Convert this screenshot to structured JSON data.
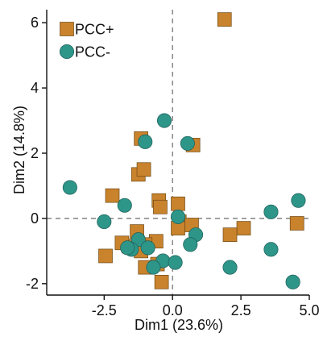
{
  "chart_data": {
    "type": "scatter",
    "xlabel": "Dim1 (23.6%)",
    "ylabel": "Dim2 (14.8%)",
    "xlim": [
      -4.6,
      5.0
    ],
    "ylim": [
      -2.35,
      6.4
    ],
    "x_ticks": [
      -2.5,
      0.0,
      2.5,
      5.0
    ],
    "x_tick_labels": [
      "-2.5",
      "0.0",
      "2.5",
      "5.0"
    ],
    "y_ticks": [
      -2,
      0,
      2,
      4,
      6
    ],
    "y_tick_labels": [
      "-2",
      "0",
      "2",
      "4",
      "6"
    ],
    "grid": false,
    "reference_lines": [
      {
        "axis": "x",
        "value": 0
      },
      {
        "axis": "y",
        "value": 0
      }
    ],
    "legend_placement": "top-left",
    "series": [
      {
        "name": "PCC+",
        "marker": "square",
        "color": "#C9832C",
        "points": [
          {
            "x": 1.9,
            "y": 6.1
          },
          {
            "x": -1.15,
            "y": 2.45
          },
          {
            "x": 0.75,
            "y": 2.25
          },
          {
            "x": -1.25,
            "y": 1.35
          },
          {
            "x": -1.05,
            "y": 1.5
          },
          {
            "x": -2.2,
            "y": 0.7
          },
          {
            "x": -0.5,
            "y": 0.55
          },
          {
            "x": -0.45,
            "y": 0.35
          },
          {
            "x": 0.2,
            "y": 0.45
          },
          {
            "x": 0.25,
            "y": -0.1
          },
          {
            "x": 0.7,
            "y": -0.2
          },
          {
            "x": 0.2,
            "y": -0.3
          },
          {
            "x": 2.6,
            "y": -0.3
          },
          {
            "x": 2.1,
            "y": -0.5
          },
          {
            "x": 4.55,
            "y": -0.15
          },
          {
            "x": -1.3,
            "y": -0.4
          },
          {
            "x": -1.6,
            "y": -0.85
          },
          {
            "x": -1.85,
            "y": -0.75
          },
          {
            "x": -0.6,
            "y": -0.7
          },
          {
            "x": -1.0,
            "y": -0.8
          },
          {
            "x": -1.15,
            "y": -1.0
          },
          {
            "x": -1.0,
            "y": -1.5
          },
          {
            "x": -0.55,
            "y": -1.4
          },
          {
            "x": -2.45,
            "y": -1.15
          },
          {
            "x": -0.4,
            "y": -1.95
          }
        ]
      },
      {
        "name": "PCC-",
        "marker": "circle",
        "color": "#2E9589",
        "points": [
          {
            "x": -0.3,
            "y": 3.0
          },
          {
            "x": -1.0,
            "y": 2.35
          },
          {
            "x": 0.55,
            "y": 2.3
          },
          {
            "x": -3.75,
            "y": 0.95
          },
          {
            "x": -1.75,
            "y": 0.4
          },
          {
            "x": -2.5,
            "y": -0.1
          },
          {
            "x": 0.2,
            "y": 0.05
          },
          {
            "x": 3.6,
            "y": 0.2
          },
          {
            "x": 4.6,
            "y": 0.55
          },
          {
            "x": 0.85,
            "y": -0.5
          },
          {
            "x": 0.65,
            "y": -0.8
          },
          {
            "x": -1.25,
            "y": -0.65
          },
          {
            "x": -0.9,
            "y": -0.9
          },
          {
            "x": -1.5,
            "y": -0.95
          },
          {
            "x": -1.65,
            "y": -0.9
          },
          {
            "x": -0.35,
            "y": -1.3
          },
          {
            "x": 0.1,
            "y": -1.35
          },
          {
            "x": -0.7,
            "y": -1.5
          },
          {
            "x": 2.1,
            "y": -1.5
          },
          {
            "x": 3.6,
            "y": -0.95
          },
          {
            "x": 4.4,
            "y": -1.95
          }
        ]
      }
    ]
  }
}
